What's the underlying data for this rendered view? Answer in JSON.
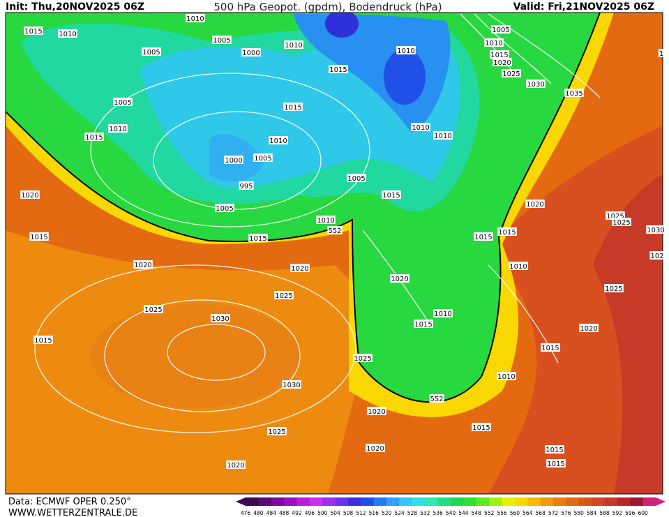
{
  "header": {
    "init": "Init: Thu,20NOV2025 06Z",
    "title": "500 hPa Geopot. (gpdm), Bodendruck (hPa)",
    "valid": "Valid: Fri,21NOV2025 06Z"
  },
  "isobar_labels": [
    1015,
    1010,
    1010,
    1005,
    1005,
    1000,
    1010,
    1015,
    1010,
    1005,
    1010,
    1015,
    1020,
    1025,
    1030,
    1035,
    1005,
    1015,
    1010,
    1015,
    1010,
    1010,
    1010,
    1000,
    1005,
    995,
    1005,
    1020,
    1015,
    1005,
    1010,
    552,
    1020,
    1025,
    1025,
    1030,
    1015,
    1015,
    1015,
    1015,
    1020,
    1020,
    1010,
    102,
    1020,
    1025,
    1025,
    1025,
    1030,
    1010,
    1015,
    1020,
    1015,
    1015,
    1025,
    1010,
    1030,
    552,
    1020,
    1015,
    1025,
    1020,
    1015,
    1015,
    1020,
    1
  ],
  "colorbar": {
    "labels": [
      476,
      480,
      484,
      488,
      492,
      496,
      500,
      504,
      508,
      512,
      516,
      520,
      524,
      528,
      532,
      536,
      540,
      544,
      548,
      552,
      556,
      560,
      564,
      568,
      572,
      576,
      580,
      584,
      588,
      592,
      596,
      600
    ],
    "colors": [
      "#3c0a50",
      "#5a0a78",
      "#7a0aa0",
      "#9a10c0",
      "#b820d8",
      "#c830f0",
      "#9a30f0",
      "#6a30f0",
      "#3a30e0",
      "#2050e8",
      "#2878f0",
      "#30a0f8",
      "#30c8f8",
      "#30e0e0",
      "#30e8b0",
      "#20e080",
      "#20d850",
      "#30e030",
      "#60e820",
      "#a0f010",
      "#e8f000",
      "#f8d800",
      "#f8b800",
      "#f09810",
      "#e88010",
      "#e06a10",
      "#d85818",
      "#d04820",
      "#c83828",
      "#b82828",
      "#a01830",
      "#d0207a"
    ]
  },
  "footer": {
    "data": "Data: ECMWF OPER 0.250°",
    "site": "WWW.WETTERZENTRALE.DE"
  }
}
